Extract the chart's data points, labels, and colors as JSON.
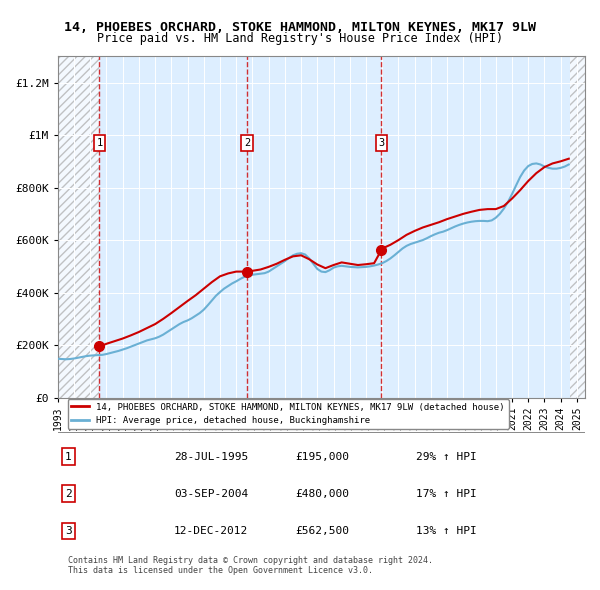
{
  "title": "14, PHOEBES ORCHARD, STOKE HAMMOND, MILTON KEYNES, MK17 9LW",
  "subtitle": "Price paid vs. HM Land Registry's House Price Index (HPI)",
  "ylabel": "",
  "xlim_start": 1993.0,
  "xlim_end": 2025.5,
  "ylim": [
    0,
    1300000
  ],
  "yticks": [
    0,
    200000,
    400000,
    600000,
    800000,
    1000000,
    1200000
  ],
  "ytick_labels": [
    "£0",
    "£200K",
    "£400K",
    "£600K",
    "£800K",
    "£1M",
    "£1.2M"
  ],
  "xticks": [
    1993,
    1994,
    1995,
    1996,
    1997,
    1998,
    1999,
    2000,
    2001,
    2002,
    2003,
    2004,
    2005,
    2006,
    2007,
    2008,
    2009,
    2010,
    2011,
    2012,
    2013,
    2014,
    2015,
    2016,
    2017,
    2018,
    2019,
    2020,
    2021,
    2022,
    2023,
    2024,
    2025
  ],
  "sale_dates": [
    1995.57,
    2004.67,
    2012.95
  ],
  "sale_prices": [
    195000,
    480000,
    562500
  ],
  "sale_labels": [
    "1",
    "2",
    "3"
  ],
  "hpi_line_color": "#6ab0d4",
  "price_line_color": "#cc0000",
  "sale_marker_color": "#cc0000",
  "dashed_line_color": "#cc0000",
  "bg_hatch_color": "#cccccc",
  "plot_bg_color": "#ddeeff",
  "legend_line1": "14, PHOEBES ORCHARD, STOKE HAMMOND, MILTON KEYNES, MK17 9LW (detached house)",
  "legend_line2": "HPI: Average price, detached house, Buckinghamshire",
  "table_data": [
    [
      "1",
      "28-JUL-1995",
      "£195,000",
      "29% ↑ HPI"
    ],
    [
      "2",
      "03-SEP-2004",
      "£480,000",
      "17% ↑ HPI"
    ],
    [
      "3",
      "12-DEC-2012",
      "£562,500",
      "13% ↑ HPI"
    ]
  ],
  "footnote": "Contains HM Land Registry data © Crown copyright and database right 2024.\nThis data is licensed under the Open Government Licence v3.0.",
  "hpi_data_x": [
    1993.0,
    1993.25,
    1993.5,
    1993.75,
    1994.0,
    1994.25,
    1994.5,
    1994.75,
    1995.0,
    1995.25,
    1995.5,
    1995.75,
    1996.0,
    1996.25,
    1996.5,
    1996.75,
    1997.0,
    1997.25,
    1997.5,
    1997.75,
    1998.0,
    1998.25,
    1998.5,
    1998.75,
    1999.0,
    1999.25,
    1999.5,
    1999.75,
    2000.0,
    2000.25,
    2000.5,
    2000.75,
    2001.0,
    2001.25,
    2001.5,
    2001.75,
    2002.0,
    2002.25,
    2002.5,
    2002.75,
    2003.0,
    2003.25,
    2003.5,
    2003.75,
    2004.0,
    2004.25,
    2004.5,
    2004.75,
    2005.0,
    2005.25,
    2005.5,
    2005.75,
    2006.0,
    2006.25,
    2006.5,
    2006.75,
    2007.0,
    2007.25,
    2007.5,
    2007.75,
    2008.0,
    2008.25,
    2008.5,
    2008.75,
    2009.0,
    2009.25,
    2009.5,
    2009.75,
    2010.0,
    2010.25,
    2010.5,
    2010.75,
    2011.0,
    2011.25,
    2011.5,
    2011.75,
    2012.0,
    2012.25,
    2012.5,
    2012.75,
    2013.0,
    2013.25,
    2013.5,
    2013.75,
    2014.0,
    2014.25,
    2014.5,
    2014.75,
    2015.0,
    2015.25,
    2015.5,
    2015.75,
    2016.0,
    2016.25,
    2016.5,
    2016.75,
    2017.0,
    2017.25,
    2017.5,
    2017.75,
    2018.0,
    2018.25,
    2018.5,
    2018.75,
    2019.0,
    2019.25,
    2019.5,
    2019.75,
    2020.0,
    2020.25,
    2020.5,
    2020.75,
    2021.0,
    2021.25,
    2021.5,
    2021.75,
    2022.0,
    2022.25,
    2022.5,
    2022.75,
    2023.0,
    2023.25,
    2023.5,
    2023.75,
    2024.0,
    2024.25,
    2024.5
  ],
  "hpi_data_y": [
    148000,
    147000,
    146000,
    147000,
    149000,
    152000,
    155000,
    158000,
    160000,
    161000,
    162000,
    163000,
    166000,
    170000,
    174000,
    178000,
    183000,
    188000,
    194000,
    200000,
    206000,
    212000,
    218000,
    222000,
    226000,
    232000,
    240000,
    250000,
    260000,
    270000,
    280000,
    288000,
    294000,
    302000,
    312000,
    322000,
    335000,
    352000,
    370000,
    388000,
    402000,
    415000,
    425000,
    435000,
    443000,
    452000,
    460000,
    465000,
    468000,
    470000,
    472000,
    474000,
    480000,
    490000,
    500000,
    510000,
    520000,
    532000,
    542000,
    548000,
    550000,
    545000,
    530000,
    510000,
    490000,
    480000,
    478000,
    485000,
    495000,
    500000,
    502000,
    500000,
    498000,
    497000,
    496000,
    497000,
    498000,
    500000,
    503000,
    507000,
    512000,
    520000,
    530000,
    542000,
    555000,
    568000,
    578000,
    585000,
    590000,
    595000,
    600000,
    607000,
    615000,
    622000,
    628000,
    632000,
    638000,
    645000,
    652000,
    658000,
    663000,
    667000,
    670000,
    672000,
    673000,
    673000,
    672000,
    675000,
    685000,
    700000,
    720000,
    745000,
    775000,
    808000,
    840000,
    865000,
    882000,
    890000,
    892000,
    888000,
    880000,
    875000,
    872000,
    872000,
    875000,
    880000,
    888000
  ],
  "price_data_x": [
    1995.57,
    1995.6,
    1995.8,
    1996.0,
    1996.5,
    1997.0,
    1997.5,
    1998.0,
    1998.5,
    1999.0,
    1999.5,
    2000.0,
    2000.5,
    2001.0,
    2001.5,
    2002.0,
    2002.5,
    2003.0,
    2003.5,
    2004.0,
    2004.5,
    2004.67,
    2004.7,
    2005.0,
    2005.5,
    2006.0,
    2006.5,
    2007.0,
    2007.5,
    2008.0,
    2008.5,
    2009.0,
    2009.5,
    2010.0,
    2010.5,
    2011.0,
    2011.5,
    2012.0,
    2012.5,
    2012.95,
    2013.0,
    2013.5,
    2014.0,
    2014.5,
    2015.0,
    2015.5,
    2016.0,
    2016.5,
    2017.0,
    2017.5,
    2018.0,
    2018.5,
    2019.0,
    2019.5,
    2020.0,
    2020.5,
    2021.0,
    2021.5,
    2022.0,
    2022.5,
    2023.0,
    2023.5,
    2024.0,
    2024.5
  ],
  "price_data_y": [
    195000,
    196000,
    200000,
    205000,
    215000,
    225000,
    237000,
    250000,
    265000,
    280000,
    300000,
    322000,
    345000,
    368000,
    390000,
    415000,
    440000,
    462000,
    473000,
    480000,
    480000,
    480000,
    481000,
    483000,
    488000,
    498000,
    510000,
    525000,
    538000,
    542000,
    527000,
    507000,
    493000,
    505000,
    515000,
    510000,
    505000,
    508000,
    512000,
    562500,
    568000,
    582000,
    600000,
    620000,
    635000,
    648000,
    658000,
    668000,
    680000,
    690000,
    700000,
    708000,
    715000,
    718000,
    718000,
    730000,
    758000,
    790000,
    825000,
    855000,
    878000,
    892000,
    900000,
    910000
  ]
}
